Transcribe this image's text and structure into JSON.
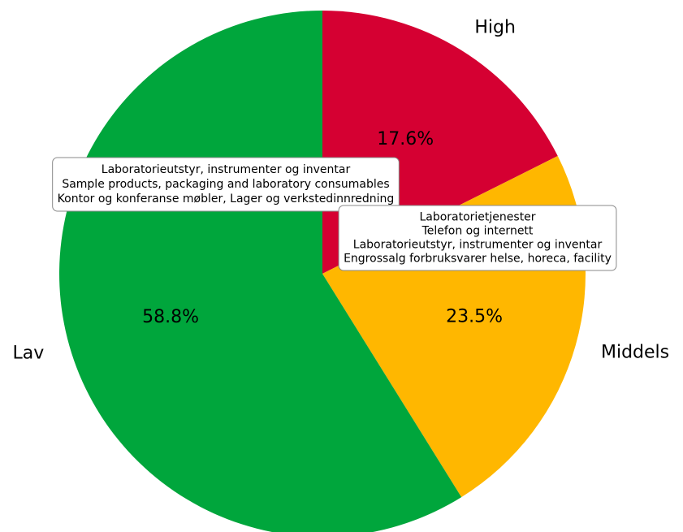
{
  "chart_data": {
    "type": "pie",
    "slices": [
      {
        "label": "High",
        "value": 17.6,
        "pct_label": "17.6%",
        "color": "#d50032"
      },
      {
        "label": "Middels",
        "value": 23.5,
        "pct_label": "23.5%",
        "color": "#ffb700"
      },
      {
        "label": "Lav",
        "value": 58.8,
        "pct_label": "58.8%",
        "color": "#00a63c"
      }
    ],
    "start_angle_deg": 90,
    "direction": "clockwise",
    "annotations": [
      {
        "slice": "Lav",
        "lines": [
          "Laboratorieutstyr, instrumenter og inventar",
          "Sample products, packaging and laboratory consumables",
          "Kontor og konferanse møbler, Lager og verkstedinnredning"
        ]
      },
      {
        "slice": "Middels",
        "lines": [
          "Laboratorietjenester",
          "Telefon og internett",
          "Laboratorieutstyr, instrumenter og inventar",
          "Engrossalg forbruksvarer helse, horeca, facility"
        ]
      }
    ]
  }
}
